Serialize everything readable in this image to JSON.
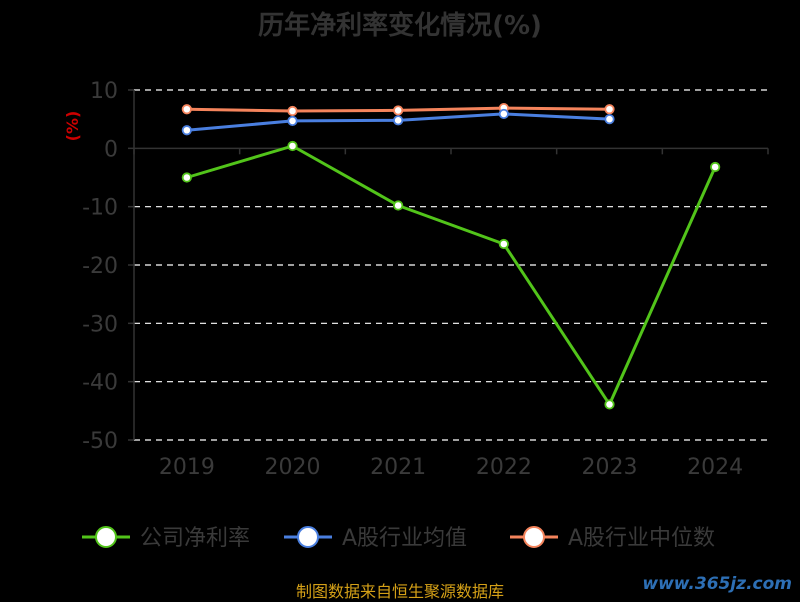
{
  "chart_data": {
    "type": "line",
    "title": "历年净利率变化情况(%)",
    "ylabel": "(%)",
    "categories": [
      "2019",
      "2020",
      "2021",
      "2022",
      "2023",
      "2024"
    ],
    "ylim": [
      -50,
      10
    ],
    "yticks": [
      10,
      0,
      -10,
      -20,
      -30,
      -40,
      -50
    ],
    "grid": true,
    "legend_position": "bottom",
    "series": [
      {
        "name": "公司净利率",
        "color": "#52c41a",
        "values": [
          -5.0,
          0.4,
          -9.8,
          -16.4,
          -43.9,
          -3.2
        ]
      },
      {
        "name": "A股行业均值",
        "color": "#4a7fe0",
        "values": [
          3.1,
          4.7,
          4.8,
          5.9,
          5.0,
          null
        ]
      },
      {
        "name": "A股行业中位数",
        "color": "#f5845c",
        "values": [
          6.7,
          6.4,
          6.5,
          6.9,
          6.7,
          null
        ]
      }
    ]
  },
  "footer": {
    "source": "制图数据来自恒生聚源数据库",
    "watermark": "www.365jz.com"
  }
}
